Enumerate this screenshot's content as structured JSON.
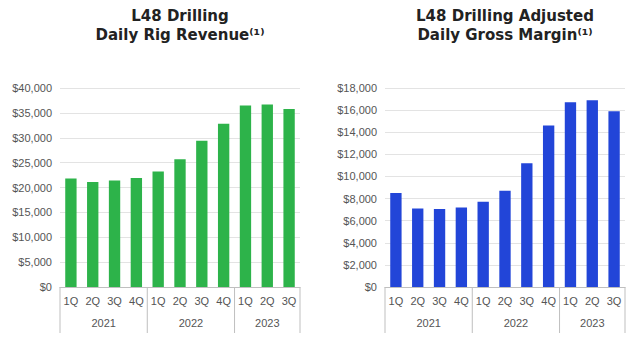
{
  "chart_data": [
    {
      "type": "bar",
      "title": "L48 Drilling\nDaily Rig Revenue⁽¹⁾",
      "categories": [
        "1Q",
        "2Q",
        "3Q",
        "4Q",
        "1Q",
        "2Q",
        "3Q",
        "4Q",
        "1Q",
        "2Q",
        "3Q"
      ],
      "groups": [
        "2021",
        "2022",
        "2023"
      ],
      "group_sizes": [
        4,
        4,
        3
      ],
      "values": [
        21800,
        21100,
        21400,
        21900,
        23200,
        25700,
        29400,
        32800,
        36500,
        36700,
        35800
      ],
      "color": "#2db34a",
      "ylim": [
        0,
        40000
      ],
      "yticks": [
        {
          "value": 0,
          "label": "$0"
        },
        {
          "value": 5000,
          "label": "$5,000"
        },
        {
          "value": 10000,
          "label": "$10,000"
        },
        {
          "value": 15000,
          "label": "$15,000"
        },
        {
          "value": 20000,
          "label": "$20,000"
        },
        {
          "value": 25000,
          "label": "$25,000"
        },
        {
          "value": 30000,
          "label": "$30,000"
        },
        {
          "value": 35000,
          "label": "$35,000"
        },
        {
          "value": 40000,
          "label": "$40,000"
        }
      ],
      "grid": true
    },
    {
      "type": "bar",
      "title": "L48 Drilling Adjusted\nDaily Gross Margin⁽¹⁾",
      "categories": [
        "1Q",
        "2Q",
        "3Q",
        "4Q",
        "1Q",
        "2Q",
        "3Q",
        "4Q",
        "1Q",
        "2Q",
        "3Q"
      ],
      "groups": [
        "2021",
        "2022",
        "2023"
      ],
      "group_sizes": [
        4,
        4,
        3
      ],
      "values": [
        8500,
        7100,
        7050,
        7200,
        7700,
        8700,
        11200,
        14600,
        16700,
        16900,
        15900
      ],
      "color": "#2245d8",
      "ylim": [
        0,
        18000
      ],
      "yticks": [
        {
          "value": 0,
          "label": "$0"
        },
        {
          "value": 2000,
          "label": "$2,000"
        },
        {
          "value": 4000,
          "label": "$4,000"
        },
        {
          "value": 6000,
          "label": "$6,000"
        },
        {
          "value": 8000,
          "label": "$8,000"
        },
        {
          "value": 10000,
          "label": "$10,000"
        },
        {
          "value": 12000,
          "label": "$12,000"
        },
        {
          "value": 14000,
          "label": "$14,000"
        },
        {
          "value": 16000,
          "label": "$16,000"
        },
        {
          "value": 18000,
          "label": "$18,000"
        }
      ],
      "grid": true
    }
  ]
}
